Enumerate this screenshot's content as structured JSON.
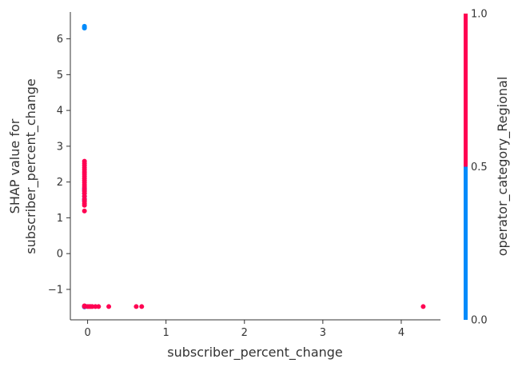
{
  "chart_data": {
    "type": "scatter",
    "title": "",
    "xlabel": "subscriber_percent_change",
    "ylabel_line1": "SHAP value for",
    "ylabel_line2": "subscriber_percent_change",
    "xlim": [
      -0.22,
      4.5
    ],
    "ylim": [
      -1.85,
      6.75
    ],
    "xticks": [
      0,
      1,
      2,
      3,
      4
    ],
    "xtick_labels": [
      "0",
      "1",
      "2",
      "3",
      "4"
    ],
    "yticks": [
      -1,
      0,
      1,
      2,
      3,
      4,
      5,
      6
    ],
    "ytick_labels": [
      "−1",
      "0",
      "1",
      "2",
      "3",
      "4",
      "5",
      "6"
    ],
    "grid": false,
    "colorbar": {
      "label": "operator_category_Regional",
      "ticks": [
        0.0,
        0.5,
        1.0
      ],
      "tick_labels": [
        "0.0",
        "0.5",
        "1.0"
      ],
      "low_color": "#008bfb",
      "high_color": "#ff0052"
    },
    "series": [
      {
        "color_value": 0,
        "color": "#008bfb",
        "x": [
          -0.04,
          -0.04,
          -0.04,
          -0.04,
          -0.04,
          -0.04,
          -0.04,
          -0.04,
          -0.04,
          -0.04,
          -0.04,
          -0.04,
          -0.04,
          -0.04,
          -0.04,
          -0.04,
          -0.03,
          -0.03
        ],
        "y": [
          6.35,
          6.32,
          6.3,
          1.82,
          1.76,
          1.68,
          1.6,
          1.53,
          1.48,
          -1.47,
          -1.47,
          -1.47,
          -1.48,
          -1.48,
          -1.48,
          -1.49,
          -1.48,
          -1.47
        ]
      },
      {
        "color_value": 1,
        "color": "#ff0052",
        "x": [
          -0.04,
          -0.04,
          -0.04,
          -0.04,
          -0.04,
          -0.04,
          -0.04,
          -0.04,
          -0.04,
          -0.04,
          -0.04,
          -0.04,
          -0.04,
          -0.04,
          -0.04,
          -0.04,
          -0.04,
          -0.04,
          -0.04,
          -0.04,
          -0.04,
          -0.04,
          -0.04,
          -0.04,
          0.0,
          0.02,
          0.04,
          0.06,
          0.1,
          0.14,
          0.27,
          0.62,
          0.69,
          4.28
        ],
        "y": [
          2.58,
          2.52,
          2.46,
          2.4,
          2.34,
          2.28,
          2.22,
          2.16,
          2.1,
          2.04,
          1.98,
          1.92,
          1.86,
          1.8,
          1.74,
          1.68,
          1.6,
          1.52,
          1.46,
          1.4,
          1.35,
          1.19,
          -1.46,
          -1.48,
          -1.48,
          -1.48,
          -1.48,
          -1.48,
          -1.48,
          -1.48,
          -1.48,
          -1.48,
          -1.48,
          -1.48
        ]
      }
    ]
  }
}
